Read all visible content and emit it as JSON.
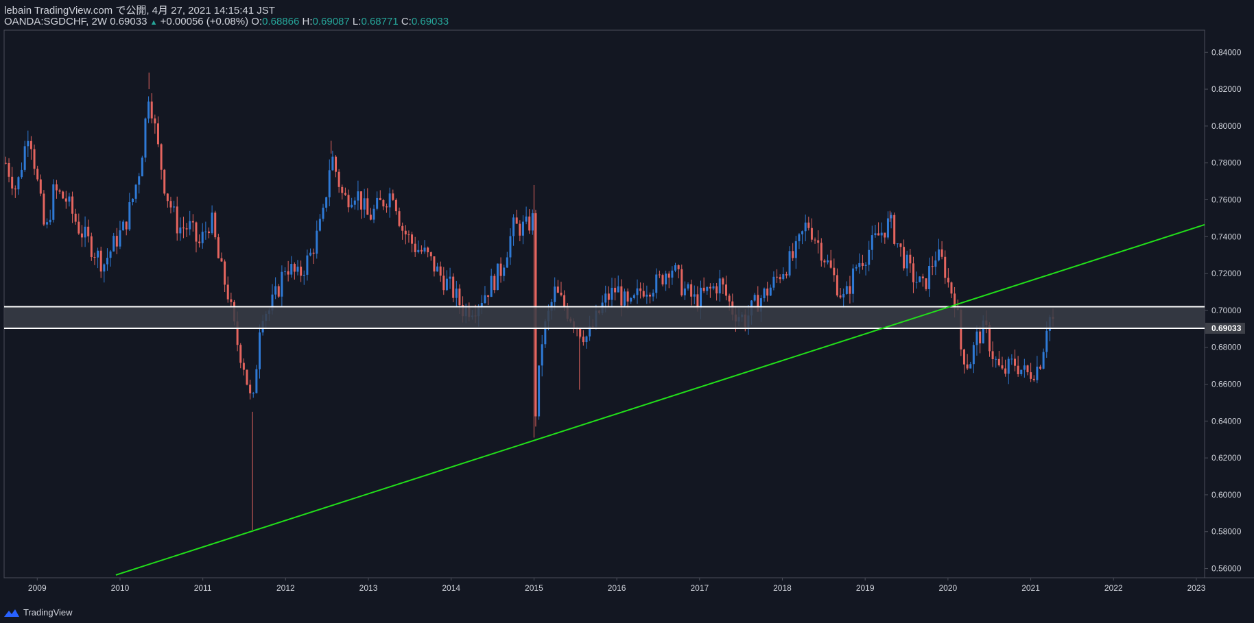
{
  "header": {
    "published": "lebain TradingView.com で公開, 4月 27, 2021 14:15:41 JST",
    "symbol": "OANDA:SGDCHF, 2W",
    "last": "0.69033",
    "change": "+0.00056 (+0.08%)",
    "open_label": "O:",
    "open": "0.68866",
    "high_label": "H:",
    "high": "0.69087",
    "low_label": "L:",
    "low": "0.68771",
    "close_label": "C:",
    "close": "0.69033"
  },
  "footer": {
    "brand": "TradingView"
  },
  "colors": {
    "background": "#131722",
    "up": "#2f7ad6",
    "down": "#e5655f",
    "trendline": "#22e01a",
    "zone_fill": "#3a3d47",
    "zone_line": "#ffffff",
    "axis_text": "#d1d4dc",
    "price_label_bg": "#3d4048"
  },
  "chart_data": {
    "type": "candlestick",
    "title": "OANDA:SGDCHF, 2W",
    "ylim": [
      0.555,
      0.852
    ],
    "xlim": [
      2008.6,
      2023.1
    ],
    "y_ticks": [
      "0.56000",
      "0.58000",
      "0.60000",
      "0.62000",
      "0.64000",
      "0.66000",
      "0.68000",
      "0.70000",
      "0.72000",
      "0.74000",
      "0.76000",
      "0.78000",
      "0.80000",
      "0.82000",
      "0.84000"
    ],
    "x_ticks": [
      "2009",
      "2010",
      "2011",
      "2012",
      "2013",
      "2014",
      "2015",
      "2016",
      "2017",
      "2018",
      "2019",
      "2020",
      "2021",
      "2022",
      "2023"
    ],
    "current_price": "0.69033",
    "support_zone": [
      0.6903,
      0.702
    ],
    "trendline": {
      "points": [
        [
          2009.95,
          0.5565
        ],
        [
          2023.1,
          0.7465
        ]
      ]
    },
    "close_path": [
      [
        2008.62,
        0.78
      ],
      [
        2008.75,
        0.765
      ],
      [
        2008.9,
        0.8
      ],
      [
        2009.0,
        0.77
      ],
      [
        2009.1,
        0.74
      ],
      [
        2009.2,
        0.765
      ],
      [
        2009.35,
        0.76
      ],
      [
        2009.5,
        0.745
      ],
      [
        2009.65,
        0.735
      ],
      [
        2009.8,
        0.725
      ],
      [
        2009.95,
        0.738
      ],
      [
        2010.05,
        0.745
      ],
      [
        2010.15,
        0.76
      ],
      [
        2010.25,
        0.78
      ],
      [
        2010.35,
        0.82
      ],
      [
        2010.45,
        0.79
      ],
      [
        2010.55,
        0.765
      ],
      [
        2010.7,
        0.745
      ],
      [
        2010.85,
        0.745
      ],
      [
        2010.95,
        0.735
      ],
      [
        2011.1,
        0.75
      ],
      [
        2011.2,
        0.725
      ],
      [
        2011.3,
        0.71
      ],
      [
        2011.4,
        0.685
      ],
      [
        2011.5,
        0.67
      ],
      [
        2011.6,
        0.645
      ],
      [
        2011.7,
        0.7
      ],
      [
        2011.8,
        0.7
      ],
      [
        2011.9,
        0.71
      ],
      [
        2012.0,
        0.725
      ],
      [
        2012.15,
        0.718
      ],
      [
        2012.3,
        0.73
      ],
      [
        2012.45,
        0.75
      ],
      [
        2012.55,
        0.785
      ],
      [
        2012.7,
        0.76
      ],
      [
        2012.85,
        0.765
      ],
      [
        2013.0,
        0.75
      ],
      [
        2013.15,
        0.758
      ],
      [
        2013.3,
        0.765
      ],
      [
        2013.4,
        0.745
      ],
      [
        2013.55,
        0.735
      ],
      [
        2013.7,
        0.73
      ],
      [
        2013.85,
        0.72
      ],
      [
        2014.0,
        0.712
      ],
      [
        2014.15,
        0.7
      ],
      [
        2014.3,
        0.703
      ],
      [
        2014.45,
        0.712
      ],
      [
        2014.6,
        0.722
      ],
      [
        2014.75,
        0.745
      ],
      [
        2014.9,
        0.745
      ],
      [
        2015.0,
        0.75
      ],
      [
        2015.02,
        0.645
      ],
      [
        2015.1,
        0.685
      ],
      [
        2015.25,
        0.71
      ],
      [
        2015.4,
        0.7
      ],
      [
        2015.55,
        0.69
      ],
      [
        2015.65,
        0.685
      ],
      [
        2015.75,
        0.695
      ],
      [
        2015.85,
        0.705
      ],
      [
        2016.0,
        0.712
      ],
      [
        2016.15,
        0.7
      ],
      [
        2016.3,
        0.712
      ],
      [
        2016.5,
        0.715
      ],
      [
        2016.65,
        0.725
      ],
      [
        2016.8,
        0.712
      ],
      [
        2016.95,
        0.705
      ],
      [
        2017.1,
        0.71
      ],
      [
        2017.25,
        0.715
      ],
      [
        2017.4,
        0.7
      ],
      [
        2017.55,
        0.695
      ],
      [
        2017.7,
        0.705
      ],
      [
        2017.85,
        0.712
      ],
      [
        2018.0,
        0.722
      ],
      [
        2018.15,
        0.73
      ],
      [
        2018.3,
        0.748
      ],
      [
        2018.45,
        0.735
      ],
      [
        2018.6,
        0.72
      ],
      [
        2018.75,
        0.705
      ],
      [
        2018.9,
        0.725
      ],
      [
        2019.0,
        0.73
      ],
      [
        2019.15,
        0.74
      ],
      [
        2019.3,
        0.748
      ],
      [
        2019.4,
        0.735
      ],
      [
        2019.55,
        0.72
      ],
      [
        2019.7,
        0.712
      ],
      [
        2019.85,
        0.73
      ],
      [
        2019.95,
        0.725
      ],
      [
        2020.0,
        0.715
      ],
      [
        2020.1,
        0.705
      ],
      [
        2020.15,
        0.68
      ],
      [
        2020.25,
        0.67
      ],
      [
        2020.35,
        0.685
      ],
      [
        2020.45,
        0.69
      ],
      [
        2020.55,
        0.675
      ],
      [
        2020.65,
        0.665
      ],
      [
        2020.8,
        0.672
      ],
      [
        2020.95,
        0.665
      ],
      [
        2021.1,
        0.67
      ],
      [
        2021.15,
        0.68
      ],
      [
        2021.2,
        0.695
      ],
      [
        2021.25,
        0.697
      ],
      [
        2021.3,
        0.69
      ]
    ],
    "wick_extremes": [
      [
        2010.35,
        0.829
      ],
      [
        2011.6,
        0.581
      ],
      [
        2015.0,
        0.631
      ],
      [
        2015.0,
        0.768
      ],
      [
        2015.55,
        0.657
      ],
      [
        2012.55,
        0.792
      ],
      [
        2019.3,
        0.754
      ]
    ]
  }
}
